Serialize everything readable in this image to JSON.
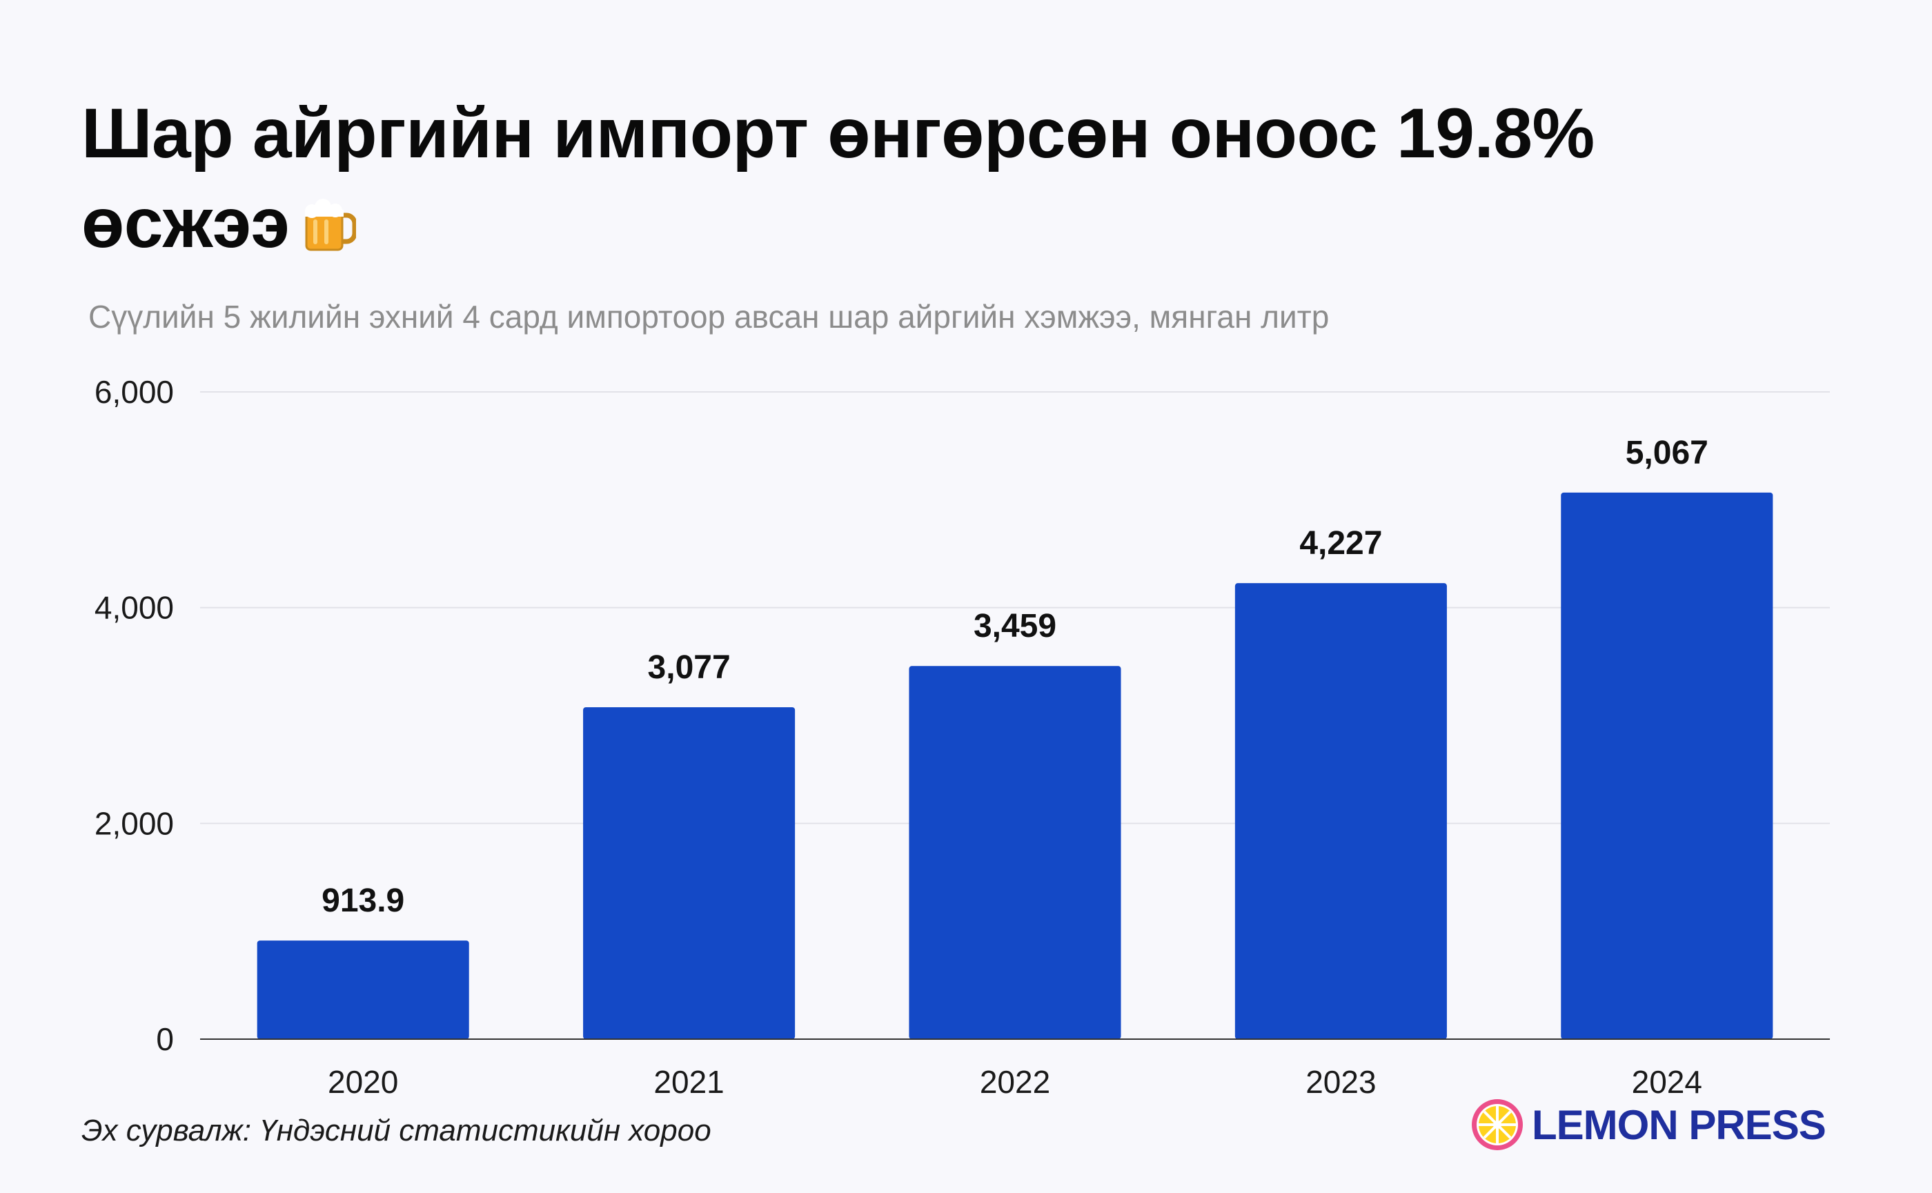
{
  "title_line1": "Шар айргийн импорт өнгөрсөн оноос 19.8%",
  "title_line2": "өсжээ",
  "title_icon": "beer-mug-icon",
  "subtitle": "Сүүлийн 5 жилийн эхний 4 сард импортоор авсан шар айргийн хэмжээ, мянган литр",
  "source": "Эх сурвалж: Үндэсний статистикийн хороо",
  "brand": {
    "name": "LEMON PRESS",
    "icon": "lemon-slice-icon",
    "color": "#1f2f9e"
  },
  "chart_data": {
    "type": "bar",
    "categories": [
      "2020",
      "2021",
      "2022",
      "2023",
      "2024"
    ],
    "values": [
      913.9,
      3077,
      3459,
      4227,
      5067
    ],
    "value_labels": [
      "913.9",
      "3,077",
      "3,459",
      "4,227",
      "5,067"
    ],
    "yticks": [
      0,
      2000,
      4000,
      6000
    ],
    "ytick_labels": [
      "0",
      "2,000",
      "4,000",
      "6,000"
    ],
    "ylim": [
      0,
      6000
    ],
    "grid": true,
    "bar_color": "#1449c6"
  }
}
